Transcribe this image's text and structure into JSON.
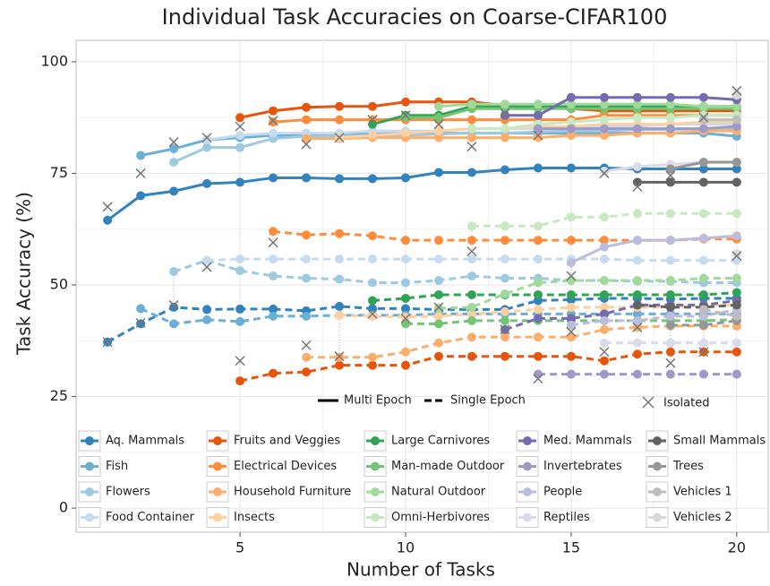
{
  "chart_data": {
    "type": "line",
    "title": "Individual Task Accuracies on Coarse-CIFAR100",
    "x_label": "Number of Tasks",
    "y_label": "Task Accuracy (%)",
    "xlim": [
      0.05,
      20.95
    ],
    "ylim": [
      -5.4,
      104.8
    ],
    "xticks": [
      5,
      10,
      15,
      20
    ],
    "yticks": [
      0,
      25,
      50,
      75,
      100
    ],
    "grid": true,
    "line_styles": {
      "multi": "Multi Epoch",
      "single": "Single Epoch",
      "isolated": "Isolated"
    },
    "series": [
      {
        "name": "Aq. Mammals",
        "color": "#3182bd",
        "x": [
          1,
          2,
          3,
          4,
          5,
          6,
          7,
          8,
          9,
          10,
          11,
          12,
          13,
          14,
          15,
          16,
          17,
          18,
          19,
          20
        ],
        "values": [
          64.5,
          70,
          71,
          72.7,
          73,
          74,
          74,
          73.8,
          73.8,
          74,
          75.2,
          75.2,
          75.8,
          76.2,
          76.2,
          76.2,
          76,
          76,
          76,
          76
        ],
        "single_epoch": [
          37.2,
          41.3,
          45,
          44.5,
          44.6,
          44.6,
          44.2,
          45.2,
          44.7,
          44.7,
          44.5,
          44.5,
          44.5,
          46.5,
          46.7,
          47,
          47,
          46.8,
          47,
          47
        ],
        "isolated": [
          67.5,
          37.2
        ]
      },
      {
        "name": "Fish",
        "color": "#6baed6",
        "x": [
          2,
          3,
          4,
          5,
          6,
          7,
          8,
          9,
          10,
          11,
          12,
          13,
          14,
          15,
          16,
          17,
          18,
          19,
          20
        ],
        "values": [
          79,
          80.5,
          82.5,
          83,
          83.5,
          83.5,
          83.8,
          83.8,
          84,
          84,
          84,
          84,
          84,
          84,
          84,
          84,
          84,
          84,
          83.3
        ],
        "single_epoch": [
          44.7,
          41.3,
          42.2,
          41.8,
          43,
          43,
          43.2,
          43.2,
          43.2,
          43.5,
          43.5,
          43.5,
          43.5,
          43.5,
          43.5,
          43.5,
          43.5,
          43.5,
          43.5
        ],
        "isolated": [
          75,
          41.5
        ]
      },
      {
        "name": "Flowers",
        "color": "#9ecae1",
        "x": [
          3,
          4,
          5,
          6,
          7,
          8,
          9,
          10,
          11,
          12,
          13,
          14,
          15,
          16,
          17,
          18,
          19,
          20
        ],
        "values": [
          77.5,
          80.8,
          80.8,
          82.8,
          83.3,
          83.3,
          83.5,
          83.5,
          83.8,
          84,
          84,
          84.3,
          84.5,
          84.5,
          84.8,
          84.8,
          85,
          85
        ],
        "single_epoch": [
          53,
          55.5,
          53.2,
          52,
          51.5,
          51.3,
          50.5,
          50.5,
          51,
          52,
          51.5,
          51.5,
          51,
          51,
          50.8,
          50.8,
          50.5,
          50.5
        ],
        "isolated": [
          82,
          45.5
        ]
      },
      {
        "name": "Food Container",
        "color": "#c6dbef",
        "x": [
          4,
          5,
          6,
          7,
          8,
          9,
          10,
          11,
          12,
          13,
          14,
          15,
          16,
          17,
          18,
          19,
          20
        ],
        "values": [
          82.5,
          83.5,
          84,
          84,
          84,
          84.5,
          84.5,
          84.5,
          85,
          85,
          85,
          85.5,
          85.5,
          85.5,
          86,
          86,
          86
        ],
        "single_epoch": [
          55.5,
          55.8,
          55.8,
          55.8,
          55.8,
          55.8,
          55.8,
          55.8,
          55.8,
          55.8,
          55.8,
          55.8,
          55.8,
          55.5,
          55.5,
          55.5,
          55.5
        ],
        "isolated": [
          83,
          54
        ]
      },
      {
        "name": "Fruits and Veggies",
        "color": "#e6550d",
        "x": [
          5,
          6,
          7,
          8,
          9,
          10,
          11,
          12,
          13,
          14,
          15,
          16,
          17,
          18,
          19,
          20
        ],
        "values": [
          87.5,
          89,
          89.8,
          90,
          90,
          91,
          91,
          91,
          90.2,
          89.8,
          89.5,
          89,
          89,
          89,
          89,
          89
        ],
        "single_epoch": [
          28.5,
          30.2,
          30.5,
          32,
          32,
          32,
          34,
          34,
          34,
          34,
          34,
          33,
          34.5,
          35,
          35,
          35
        ],
        "isolated": [
          85.5,
          33
        ]
      },
      {
        "name": "Electrical Devices",
        "color": "#fd8d3c",
        "x": [
          6,
          7,
          8,
          9,
          10,
          11,
          12,
          13,
          14,
          15,
          16,
          17,
          18,
          19,
          20
        ],
        "values": [
          86.5,
          87,
          87,
          87,
          87,
          87,
          87,
          87,
          87,
          87,
          88,
          88,
          88,
          88,
          88
        ],
        "single_epoch": [
          62,
          61.2,
          61.5,
          61,
          60,
          60,
          60,
          60,
          60,
          60,
          60,
          60,
          60,
          60.3,
          60.3
        ],
        "isolated": [
          86.8,
          59.5
        ]
      },
      {
        "name": "Household Furniture",
        "color": "#fdae6b",
        "x": [
          7,
          8,
          9,
          10,
          11,
          12,
          13,
          14,
          15,
          16,
          17,
          18,
          19,
          20
        ],
        "values": [
          82.8,
          82.8,
          83,
          83,
          83,
          83,
          83,
          83,
          83.5,
          83.5,
          84,
          84,
          84.5,
          84.5
        ],
        "single_epoch": [
          33.8,
          33.8,
          33.8,
          35,
          37,
          38.3,
          38.3,
          38.3,
          38.3,
          40,
          40.5,
          40.8,
          40.8,
          40.8
        ],
        "isolated": [
          81.5,
          36.5
        ]
      },
      {
        "name": "Insects",
        "color": "#fdd0a2",
        "x": [
          8,
          9,
          10,
          11,
          12,
          13,
          14,
          15,
          16,
          17,
          18,
          19,
          20
        ],
        "values": [
          83,
          83.5,
          84,
          84.5,
          85,
          85,
          85.5,
          85.5,
          86,
          86,
          86,
          86.5,
          86.5
        ],
        "single_epoch": [
          43.2,
          43,
          42.8,
          43,
          43.5,
          44,
          44.5,
          45,
          45,
          45,
          45,
          45.5,
          45.5
        ],
        "isolated": [
          83,
          34
        ]
      },
      {
        "name": "Large Carnivores",
        "color": "#31a354",
        "x": [
          9,
          10,
          11,
          12,
          13,
          14,
          15,
          16,
          17,
          18,
          19,
          20
        ],
        "values": [
          86,
          88,
          88,
          90,
          90,
          90,
          90,
          90,
          90,
          90,
          90,
          90
        ],
        "single_epoch": [
          46.5,
          47,
          47.8,
          47.8,
          47.8,
          47.8,
          47.8,
          47.8,
          47.8,
          47.8,
          47.8,
          48.3
        ],
        "isolated": [
          87,
          43.5
        ]
      },
      {
        "name": "Man-made Outdoor",
        "color": "#74c476",
        "x": [
          10,
          11,
          12,
          13,
          14,
          15,
          16,
          17,
          18,
          19,
          20
        ],
        "values": [
          87.5,
          87.5,
          89.5,
          89.5,
          89.5,
          89.5,
          89.5,
          89.5,
          89.5,
          89.5,
          89.5
        ],
        "single_epoch": [
          41.3,
          41.3,
          42,
          42,
          42,
          42,
          42,
          42,
          42,
          42,
          42.2
        ],
        "isolated": [
          88,
          42.5
        ]
      },
      {
        "name": "Natural Outdoor",
        "color": "#a1d99b",
        "x": [
          11,
          12,
          13,
          14,
          15,
          16,
          17,
          18,
          19,
          20
        ],
        "values": [
          90,
          90.5,
          90.5,
          90.5,
          90.5,
          90.5,
          90.5,
          90.5,
          90,
          90
        ],
        "single_epoch": [
          44.8,
          45,
          48,
          50.5,
          51,
          51,
          51,
          51,
          51.5,
          51.5
        ],
        "isolated": [
          86,
          45
        ]
      },
      {
        "name": "Omni-Herbivores",
        "color": "#c7e9c0",
        "x": [
          12,
          13,
          14,
          15,
          16,
          17,
          18,
          19,
          20
        ],
        "values": [
          85,
          85,
          86,
          86.5,
          87,
          87.5,
          87.5,
          88,
          88
        ],
        "single_epoch": [
          63.2,
          63.2,
          63.2,
          65.2,
          65.2,
          66,
          66,
          66,
          66
        ],
        "isolated": [
          81,
          57.5
        ]
      },
      {
        "name": "Med. Mammals",
        "color": "#756bb1",
        "x": [
          13,
          14,
          15,
          16,
          17,
          18,
          19,
          20
        ],
        "values": [
          88,
          88,
          92,
          92,
          92,
          92,
          92,
          91.5
        ],
        "single_epoch": [
          40,
          42.5,
          42.5,
          43.5,
          45.5,
          45.5,
          45.5,
          46.5
        ],
        "isolated": [
          88.5,
          40
        ]
      },
      {
        "name": "Invertebrates",
        "color": "#9e9ac8",
        "x": [
          14,
          15,
          16,
          17,
          18,
          19,
          20
        ],
        "values": [
          85,
          85,
          85,
          85,
          85,
          85,
          85.5
        ],
        "single_epoch": [
          30,
          30,
          30,
          30,
          30,
          30,
          30
        ],
        "isolated": [
          83.5,
          29
        ]
      },
      {
        "name": "People",
        "color": "#bcbddc",
        "x": [
          15,
          16,
          17,
          18,
          19,
          20
        ],
        "values": [
          55,
          58.5,
          60,
          60,
          60.5,
          61
        ],
        "single_epoch": [
          41,
          42,
          42,
          43,
          43,
          44.5
        ],
        "isolated": [
          52,
          39.5
        ]
      },
      {
        "name": "Reptiles",
        "color": "#dadaeb",
        "x": [
          16,
          17,
          18,
          19,
          20
        ],
        "values": [
          75.5,
          76.5,
          77,
          77.5,
          77.5
        ],
        "single_epoch": [
          37,
          37,
          37,
          37,
          37
        ],
        "isolated": [
          75,
          35
        ]
      },
      {
        "name": "Small Mammals",
        "color": "#636363",
        "x": [
          17,
          18,
          19,
          20
        ],
        "values": [
          73,
          73,
          73,
          73
        ],
        "single_epoch": [
          45.5,
          45,
          45,
          45.5
        ],
        "isolated": [
          72,
          40.5
        ]
      },
      {
        "name": "Trees",
        "color": "#969696",
        "x": [
          18,
          19,
          20
        ],
        "values": [
          76,
          77.5,
          77.5
        ],
        "single_epoch": [
          41,
          41,
          42
        ],
        "isolated": [
          74.5,
          32.5
        ]
      },
      {
        "name": "Vehicles 1",
        "color": "#bdbdbd",
        "x": [
          19,
          20
        ],
        "values": [
          87,
          87
        ],
        "single_epoch": [
          44.5,
          43
        ],
        "isolated": [
          87.5,
          35
        ]
      },
      {
        "name": "Vehicles 2",
        "color": "#d9d9d9",
        "x": [
          20
        ],
        "values": [
          92.5
        ],
        "single_epoch": [
          57
        ],
        "isolated": [
          93.5,
          56.5
        ]
      }
    ]
  }
}
